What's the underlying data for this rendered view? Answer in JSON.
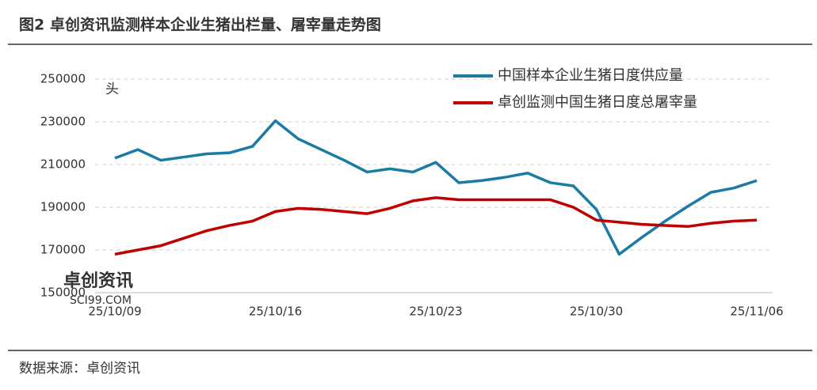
{
  "chart_data": {
    "type": "line",
    "title": "图2 卓创资讯监测样本企业生猪出栏量、屠宰量走势图",
    "unit_label": "头",
    "source": "数据来源：卓创资讯",
    "watermark": [
      "卓创资讯",
      "SCI99.COM"
    ],
    "categories": [
      "25/10/09",
      null,
      null,
      null,
      null,
      null,
      null,
      "25/10/16",
      null,
      null,
      null,
      null,
      null,
      null,
      "25/10/23",
      null,
      null,
      null,
      null,
      null,
      null,
      "25/10/30",
      null,
      null,
      null,
      null,
      null,
      null,
      "25/11/06"
    ],
    "series": [
      {
        "name": "中国样本企业生猪日度供应量",
        "color": "#1b7ba3",
        "values": [
          213000,
          217000,
          212000,
          213500,
          215000,
          215500,
          218500,
          230500,
          222000,
          217000,
          212000,
          206500,
          208000,
          206500,
          211000,
          201500,
          202500,
          204000,
          206000,
          201500,
          200000,
          189000,
          168000,
          176000,
          183500,
          190500,
          197000,
          199000,
          202500
        ]
      },
      {
        "name": "卓创监测中国生猪日度总屠宰量",
        "color": "#c00000",
        "values": [
          168000,
          170000,
          172000,
          175500,
          179000,
          181500,
          183500,
          188000,
          189500,
          189000,
          188000,
          187000,
          189500,
          193000,
          194500,
          193500,
          193500,
          193500,
          193500,
          193500,
          190000,
          184000,
          183000,
          182000,
          181500,
          181000,
          182500,
          183500,
          184000
        ]
      }
    ],
    "ylim": [
      150000,
      250000
    ],
    "yticks": [
      150000,
      170000,
      190000,
      210000,
      230000,
      250000
    ],
    "grid": true
  }
}
